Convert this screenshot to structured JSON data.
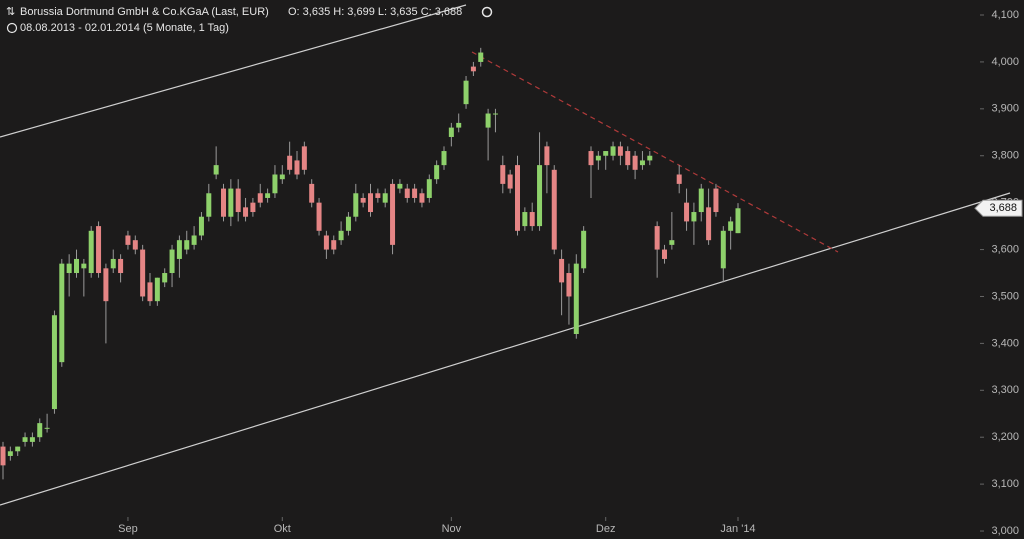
{
  "chart_data": {
    "type": "candlestick",
    "title": "Borussia Dortmund GmbH & Co.KGaA (Last, EUR)",
    "ohlc_label": "O: 3,635  H: 3,699  L: 3,635  C: 3,688",
    "subtitle": "08.08.2013 - 02.01.2014 (5 Monate, 1 Tag)",
    "last_label": "3,688",
    "up_color": "#8ed16b",
    "down_color": "#e58585",
    "categories": [
      null,
      null,
      null,
      null,
      null,
      null,
      null,
      null,
      null,
      null,
      null,
      null,
      null,
      null,
      null,
      null,
      null,
      "Sep",
      null,
      null,
      null,
      null,
      null,
      null,
      null,
      null,
      null,
      null,
      null,
      null,
      null,
      null,
      null,
      null,
      null,
      null,
      null,
      null,
      "Okt",
      null,
      null,
      null,
      null,
      null,
      null,
      null,
      null,
      null,
      null,
      null,
      null,
      null,
      null,
      null,
      null,
      null,
      null,
      null,
      null,
      null,
      null,
      "Nov",
      null,
      null,
      null,
      null,
      null,
      null,
      null,
      null,
      null,
      null,
      null,
      null,
      null,
      null,
      null,
      null,
      null,
      null,
      null,
      null,
      "Dez",
      null,
      null,
      null,
      null,
      null,
      null,
      null,
      null,
      null,
      null,
      null,
      null,
      null,
      null,
      null,
      null,
      null,
      "Jan '14"
    ],
    "open": [
      3.18,
      3.16,
      3.17,
      3.19,
      3.19,
      3.2,
      3.22,
      3.26,
      3.36,
      3.55,
      3.55,
      3.56,
      3.55,
      3.65,
      3.56,
      3.56,
      3.58,
      3.63,
      3.62,
      3.6,
      3.53,
      3.49,
      3.53,
      3.55,
      3.58,
      3.6,
      3.61,
      3.63,
      3.67,
      3.76,
      3.73,
      3.67,
      3.73,
      3.69,
      3.7,
      3.72,
      3.71,
      3.72,
      3.75,
      3.8,
      3.79,
      3.82,
      3.74,
      3.7,
      3.63,
      3.62,
      3.62,
      3.64,
      3.67,
      3.71,
      3.72,
      3.72,
      3.7,
      3.74,
      3.73,
      3.73,
      3.73,
      3.72,
      3.71,
      3.75,
      3.78,
      3.84,
      3.86,
      3.91,
      3.99,
      4.0,
      3.86,
      3.89,
      3.78,
      3.76,
      3.78,
      3.65,
      3.68,
      3.65,
      3.82,
      3.77,
      3.58,
      3.55,
      3.42,
      3.56,
      3.81,
      3.79,
      3.8,
      3.8,
      3.82,
      3.81,
      3.8,
      3.78,
      3.79,
      3.65,
      3.6,
      3.61,
      3.76,
      3.7,
      3.66,
      3.68,
      3.69,
      3.73,
      3.56,
      3.64,
      3.635
    ],
    "high": [
      3.19,
      3.18,
      3.18,
      3.21,
      3.21,
      3.24,
      3.25,
      3.47,
      3.58,
      3.59,
      3.6,
      3.58,
      3.65,
      3.66,
      3.57,
      3.6,
      3.59,
      3.64,
      3.63,
      3.61,
      3.55,
      3.54,
      3.56,
      3.61,
      3.63,
      3.64,
      3.65,
      3.68,
      3.74,
      3.82,
      3.74,
      3.75,
      3.75,
      3.71,
      3.71,
      3.74,
      3.73,
      3.78,
      3.78,
      3.83,
      3.81,
      3.83,
      3.75,
      3.71,
      3.64,
      3.63,
      3.66,
      3.68,
      3.74,
      3.72,
      3.74,
      3.73,
      3.73,
      3.75,
      3.75,
      3.74,
      3.74,
      3.73,
      3.76,
      3.79,
      3.82,
      3.87,
      3.89,
      3.97,
      4.0,
      4.03,
      3.9,
      3.9,
      3.8,
      3.77,
      3.8,
      3.69,
      3.7,
      3.85,
      3.83,
      3.78,
      3.6,
      3.57,
      3.59,
      3.65,
      3.82,
      3.81,
      3.81,
      3.83,
      3.83,
      3.82,
      3.81,
      3.81,
      3.81,
      3.66,
      3.61,
      3.68,
      3.78,
      3.73,
      3.7,
      3.74,
      3.73,
      3.74,
      3.65,
      3.67,
      3.699
    ],
    "low": [
      3.11,
      3.15,
      3.16,
      3.18,
      3.18,
      3.19,
      3.21,
      3.25,
      3.35,
      3.5,
      3.54,
      3.5,
      3.54,
      3.54,
      3.4,
      3.55,
      3.53,
      3.6,
      3.59,
      3.49,
      3.48,
      3.48,
      3.52,
      3.52,
      3.54,
      3.59,
      3.6,
      3.62,
      3.66,
      3.75,
      3.66,
      3.65,
      3.66,
      3.66,
      3.67,
      3.69,
      3.7,
      3.71,
      3.74,
      3.76,
      3.75,
      3.76,
      3.69,
      3.63,
      3.58,
      3.59,
      3.61,
      3.63,
      3.66,
      3.69,
      3.67,
      3.7,
      3.69,
      3.59,
      3.72,
      3.7,
      3.7,
      3.69,
      3.7,
      3.74,
      3.77,
      3.82,
      3.85,
      3.9,
      3.97,
      3.99,
      3.79,
      3.85,
      3.72,
      3.72,
      3.63,
      3.64,
      3.64,
      3.64,
      3.72,
      3.59,
      3.46,
      3.44,
      3.41,
      3.55,
      3.71,
      3.77,
      3.77,
      3.79,
      3.78,
      3.77,
      3.75,
      3.77,
      3.78,
      3.54,
      3.57,
      3.6,
      3.72,
      3.64,
      3.61,
      3.66,
      3.61,
      3.67,
      3.53,
      3.6,
      3.635
    ],
    "close": [
      3.14,
      3.17,
      3.18,
      3.2,
      3.2,
      3.23,
      3.22,
      3.46,
      3.57,
      3.57,
      3.58,
      3.57,
      3.64,
      3.55,
      3.49,
      3.58,
      3.55,
      3.61,
      3.6,
      3.5,
      3.49,
      3.54,
      3.55,
      3.6,
      3.62,
      3.62,
      3.63,
      3.67,
      3.72,
      3.78,
      3.67,
      3.73,
      3.68,
      3.67,
      3.68,
      3.7,
      3.72,
      3.76,
      3.76,
      3.77,
      3.76,
      3.77,
      3.7,
      3.64,
      3.6,
      3.6,
      3.64,
      3.67,
      3.72,
      3.7,
      3.68,
      3.71,
      3.72,
      3.61,
      3.74,
      3.71,
      3.71,
      3.7,
      3.75,
      3.78,
      3.81,
      3.86,
      3.87,
      3.96,
      3.98,
      4.02,
      3.89,
      3.89,
      3.74,
      3.73,
      3.64,
      3.68,
      3.65,
      3.78,
      3.78,
      3.6,
      3.53,
      3.5,
      3.57,
      3.64,
      3.78,
      3.8,
      3.81,
      3.82,
      3.8,
      3.78,
      3.77,
      3.79,
      3.8,
      3.6,
      3.58,
      3.62,
      3.74,
      3.66,
      3.68,
      3.73,
      3.62,
      3.68,
      3.64,
      3.66,
      3.688
    ],
    "ylim": [
      2.983,
      4.132
    ],
    "yticks": [
      {
        "value": 3.0,
        "label": "3,000"
      },
      {
        "value": 3.1,
        "label": "3,100"
      },
      {
        "value": 3.2,
        "label": "3,200"
      },
      {
        "value": 3.3,
        "label": "3,300"
      },
      {
        "value": 3.4,
        "label": "3,400"
      },
      {
        "value": 3.5,
        "label": "3,500"
      },
      {
        "value": 3.6,
        "label": "3,600"
      },
      {
        "value": 3.7,
        "label": "3,700"
      },
      {
        "value": 3.8,
        "label": "3,800"
      },
      {
        "value": 3.9,
        "label": "3,900"
      },
      {
        "value": 4.0,
        "label": "4,000"
      },
      {
        "value": 4.1,
        "label": "4,100"
      }
    ],
    "grid": false
  }
}
